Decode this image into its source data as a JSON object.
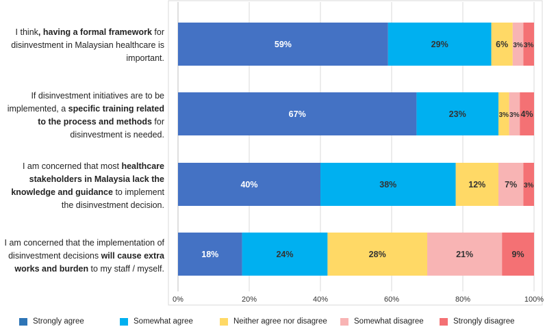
{
  "chart_data": {
    "type": "bar",
    "orientation": "horizontal",
    "stacked": "percent",
    "title": "",
    "xlabel": "",
    "ylabel": "",
    "xlim": [
      0,
      100
    ],
    "xticks": [
      "0%",
      "20%",
      "40%",
      "60%",
      "80%",
      "100%"
    ],
    "grid": true,
    "legend_position": "bottom",
    "categories": [
      [
        {
          "text": "I think",
          "bold": false
        },
        {
          "text": ", having a formal framework",
          "bold": true
        },
        {
          "text": " for disinvestment in Malaysian healthcare is important.",
          "bold": false
        }
      ],
      [
        {
          "text": "If disinvestment initiatives are to be implemented, a ",
          "bold": false
        },
        {
          "text": "specific training related to the process and methods",
          "bold": true
        },
        {
          "text": " for disinvestment is needed.",
          "bold": false
        }
      ],
      [
        {
          "text": "I am concerned that most ",
          "bold": false
        },
        {
          "text": "healthcare stakeholders in Malaysia lack the knowledge and guidance",
          "bold": true
        },
        {
          "text": " to implement the disinvestment decision.",
          "bold": false
        }
      ],
      [
        {
          "text": "I am concerned that the implementation of disinvestment decisions ",
          "bold": false
        },
        {
          "text": "will cause extra works and burden",
          "bold": true
        },
        {
          "text": " to my staff / myself.",
          "bold": false
        }
      ]
    ],
    "series": [
      {
        "name": "Strongly agree",
        "color": "#4472C4",
        "label_color": "#ffffff",
        "values": [
          59,
          67,
          40,
          18
        ]
      },
      {
        "name": "Somewhat agree",
        "color": "#00B0F0",
        "label_color": "#333333",
        "values": [
          29,
          23,
          38,
          24
        ]
      },
      {
        "name": "Neither agree nor disagree",
        "color": "#FFD966",
        "label_color": "#333333",
        "values": [
          6,
          3,
          12,
          28
        ]
      },
      {
        "name": "Somewhat disagree",
        "color": "#F8B4B4",
        "label_color": "#333333",
        "values": [
          3,
          3,
          7,
          21
        ]
      },
      {
        "name": "Strongly disagree",
        "color": "#F47174",
        "label_color": "#333333",
        "values": [
          3,
          4,
          3,
          9
        ]
      }
    ]
  },
  "legend": {
    "items": [
      {
        "label": "Strongly agree",
        "color": "#2E75B6"
      },
      {
        "label": "Somewhat agree",
        "color": "#00B0F0"
      },
      {
        "label": "Neither agree nor disagree",
        "color": "#FFD966"
      },
      {
        "label": "Somewhat disagree",
        "color": "#F8B4B4"
      },
      {
        "label": "Strongly disagree",
        "color": "#F47174"
      }
    ]
  },
  "colors": {
    "axis": "#bfbfbf",
    "grid": "#d9d9d9",
    "text": "#222222"
  }
}
